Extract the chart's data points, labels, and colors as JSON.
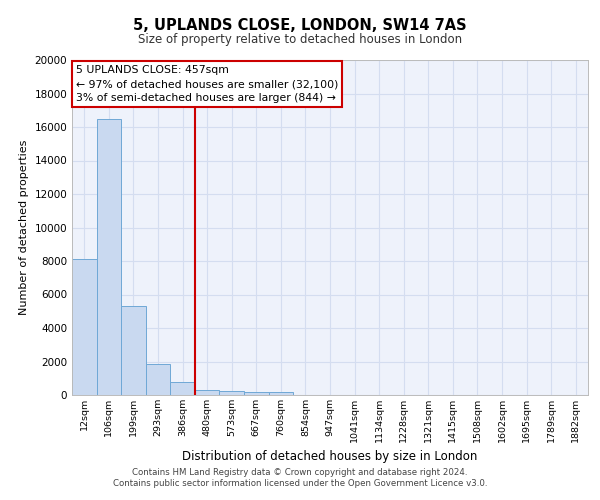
{
  "title_line1": "5, UPLANDS CLOSE, LONDON, SW14 7AS",
  "title_line2": "Size of property relative to detached houses in London",
  "xlabel": "Distribution of detached houses by size in London",
  "ylabel": "Number of detached properties",
  "categories": [
    "12sqm",
    "106sqm",
    "199sqm",
    "293sqm",
    "386sqm",
    "480sqm",
    "573sqm",
    "667sqm",
    "760sqm",
    "854sqm",
    "947sqm",
    "1041sqm",
    "1134sqm",
    "1228sqm",
    "1321sqm",
    "1415sqm",
    "1508sqm",
    "1602sqm",
    "1695sqm",
    "1789sqm",
    "1882sqm"
  ],
  "values": [
    8100,
    16500,
    5300,
    1850,
    750,
    320,
    230,
    200,
    170,
    0,
    0,
    0,
    0,
    0,
    0,
    0,
    0,
    0,
    0,
    0,
    0
  ],
  "bar_color": "#c9d9f0",
  "bar_edge_color": "#6fa8d6",
  "vline_x_index": 4.5,
  "vline_color": "#cc0000",
  "annotation_text": "5 UPLANDS CLOSE: 457sqm\n← 97% of detached houses are smaller (32,100)\n3% of semi-detached houses are larger (844) →",
  "annotation_box_color": "#ffffff",
  "annotation_box_edge": "#cc0000",
  "ylim": [
    0,
    20000
  ],
  "yticks": [
    0,
    2000,
    4000,
    6000,
    8000,
    10000,
    12000,
    14000,
    16000,
    18000,
    20000
  ],
  "grid_color": "#d4ddf0",
  "footer_line1": "Contains HM Land Registry data © Crown copyright and database right 2024.",
  "footer_line2": "Contains public sector information licensed under the Open Government Licence v3.0.",
  "bg_color": "#eef2fb"
}
